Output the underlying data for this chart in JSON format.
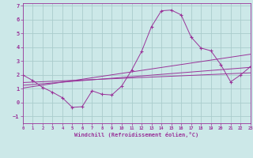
{
  "title": "",
  "xlabel": "Windchill (Refroidissement éolien,°C)",
  "ylabel": "",
  "bg_color": "#cce8e8",
  "grid_color": "#aacccc",
  "line_color": "#993399",
  "xlim": [
    0,
    23
  ],
  "ylim": [
    -1.5,
    7.2
  ],
  "xticks": [
    0,
    1,
    2,
    3,
    4,
    5,
    6,
    7,
    8,
    9,
    10,
    11,
    12,
    13,
    14,
    15,
    16,
    17,
    18,
    19,
    20,
    21,
    22,
    23
  ],
  "yticks": [
    -1,
    0,
    1,
    2,
    3,
    4,
    5,
    6,
    7
  ],
  "main_x": [
    0,
    1,
    2,
    3,
    4,
    5,
    6,
    7,
    8,
    9,
    10,
    11,
    12,
    13,
    14,
    15,
    16,
    17,
    18,
    19,
    20,
    21,
    22,
    23
  ],
  "main_y": [
    2.0,
    1.6,
    1.1,
    0.75,
    0.35,
    -0.35,
    -0.3,
    0.85,
    0.6,
    0.55,
    1.2,
    2.35,
    3.7,
    5.5,
    6.65,
    6.7,
    6.35,
    4.75,
    3.95,
    3.75,
    2.75,
    1.5,
    2.0,
    2.6
  ],
  "reg_line1_x": [
    0,
    23
  ],
  "reg_line1_y": [
    1.05,
    3.5
  ],
  "reg_line2_x": [
    0,
    23
  ],
  "reg_line2_y": [
    1.25,
    2.55
  ],
  "reg_line3_x": [
    0,
    23
  ],
  "reg_line3_y": [
    1.45,
    2.15
  ]
}
